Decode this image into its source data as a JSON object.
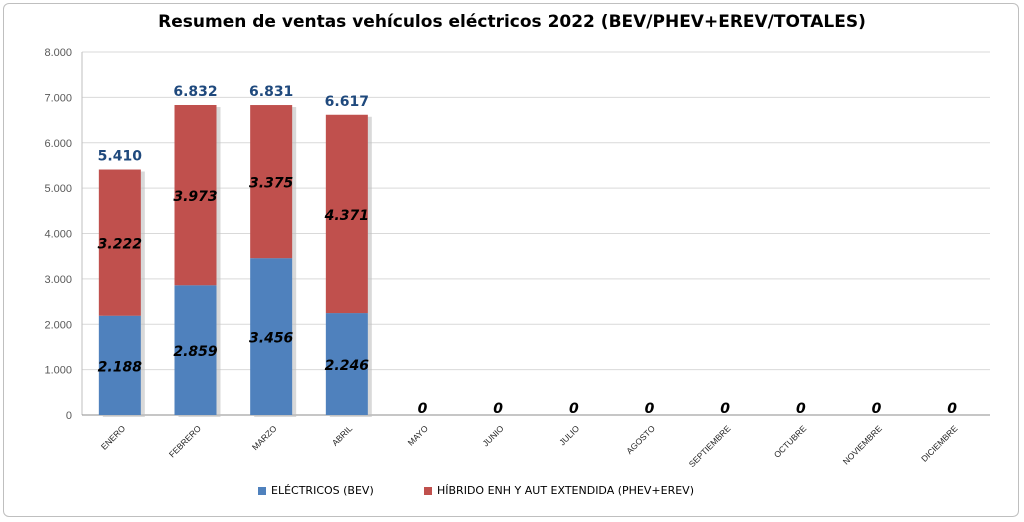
{
  "chart_data": {
    "type": "bar",
    "stacked": true,
    "title": "Resumen de ventas vehículos eléctricos 2022 (BEV/PHEV+EREV/TOTALES)",
    "categories": [
      "ENERO",
      "FEBRERO",
      "MARZO",
      "ABRIL",
      "MAYO",
      "JUNIO",
      "JULIO",
      "AGOSTO",
      "SEPTIEMBRE",
      "OCTUBRE",
      "NOVIEMBRE",
      "DICIEMBRE"
    ],
    "series": [
      {
        "name": "ELÉCTRICOS (BEV)",
        "color": "#4f81bd",
        "values": [
          2188,
          2859,
          3456,
          2246,
          0,
          0,
          0,
          0,
          0,
          0,
          0,
          0
        ],
        "labels": [
          "2.188",
          "2.859",
          "3.456",
          "2.246",
          "0",
          "0",
          "0",
          "0",
          "0",
          "0",
          "0",
          "0"
        ]
      },
      {
        "name": "HÍBRIDO ENH Y AUT EXTENDIDA (PHEV+EREV)",
        "color": "#c0504d",
        "values": [
          3222,
          3973,
          3375,
          4371,
          0,
          0,
          0,
          0,
          0,
          0,
          0,
          0
        ],
        "labels": [
          "3.222",
          "3.973",
          "3.375",
          "4.371",
          "",
          "",
          "",
          "",
          "",
          "",
          "",
          ""
        ]
      }
    ],
    "totals": [
      5410,
      6832,
      6831,
      6617
    ],
    "total_labels": [
      "5.410",
      "6.832",
      "6.831",
      "6.617"
    ],
    "total_color": "#1f497d",
    "ylim": [
      0,
      8000
    ],
    "yticks": [
      0,
      1000,
      2000,
      3000,
      4000,
      5000,
      6000,
      7000,
      8000
    ],
    "ytick_labels": [
      "0",
      "1.000",
      "2.000",
      "3.000",
      "4.000",
      "5.000",
      "6.000",
      "7.000",
      "8.000"
    ],
    "grid": true,
    "legend_position": "bottom"
  }
}
